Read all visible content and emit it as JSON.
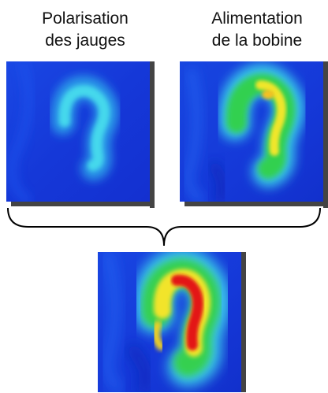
{
  "labels": {
    "left": {
      "line1": "Polarisation",
      "line2": "des jauges"
    },
    "right": {
      "line1": "Alimentation",
      "line2": "de la bobine"
    }
  },
  "colors": {
    "field_blue": "#1540e0",
    "cold_cyan": "#33c6e8",
    "warm_green": "#30d050",
    "hot_yellow": "#f3e829",
    "peak_red": "#e31818",
    "shadow": "#444444",
    "brace_stroke": "#000000"
  },
  "images": {
    "left": "thermal-image-gauges-low",
    "right": "thermal-image-coil-medium",
    "bottom": "thermal-image-combined-high"
  }
}
